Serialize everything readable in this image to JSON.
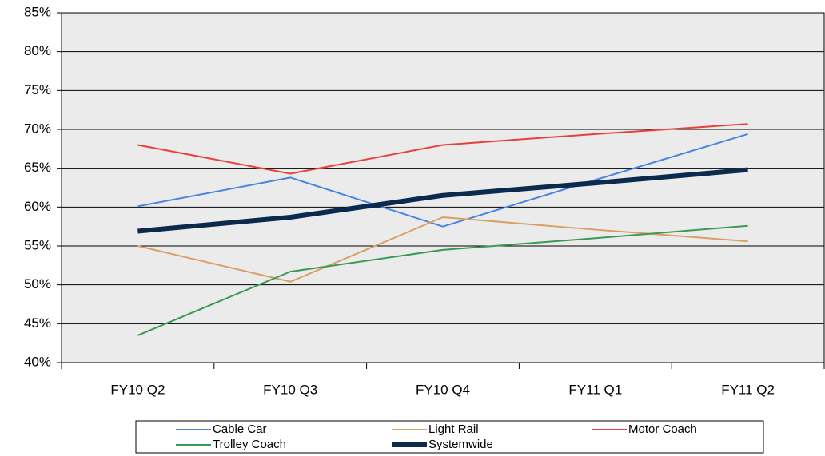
{
  "chart_data": {
    "type": "line",
    "categories": [
      "FY10 Q2",
      "FY10 Q3",
      "FY10 Q4",
      "FY11 Q1",
      "FY11 Q2"
    ],
    "series": [
      {
        "name": "Cable Car",
        "color": "#4a86e0",
        "width": 2,
        "values": [
          60.1,
          63.8,
          57.5,
          63.5,
          69.4
        ]
      },
      {
        "name": "Light Rail",
        "color": "#d9a066",
        "width": 2,
        "values": [
          55,
          50.4,
          58.7,
          57.1,
          55.6
        ]
      },
      {
        "name": "Motor Coach",
        "color": "#e8413c",
        "width": 2,
        "values": [
          68,
          64.3,
          68,
          69.4,
          70.7
        ]
      },
      {
        "name": "Trolley Coach",
        "color": "#3a9a55",
        "width": 2,
        "values": [
          43.5,
          51.7,
          54.5,
          56,
          57.6
        ]
      },
      {
        "name": "Systemwide",
        "color": "#0b2a4e",
        "width": 6,
        "values": [
          56.9,
          58.7,
          61.5,
          63.1,
          64.8
        ]
      }
    ],
    "ylim": [
      40,
      85
    ],
    "yticks": [
      {
        "value": 40,
        "label": "40%"
      },
      {
        "value": 45,
        "label": "45%"
      },
      {
        "value": 50,
        "label": "50%"
      },
      {
        "value": 55,
        "label": "55%"
      },
      {
        "value": 60,
        "label": "60%"
      },
      {
        "value": 65,
        "label": "65%"
      },
      {
        "value": 70,
        "label": "70%"
      },
      {
        "value": 75,
        "label": "75%"
      },
      {
        "value": 80,
        "label": "80%"
      },
      {
        "value": 85,
        "label": "85%"
      }
    ],
    "grid": true,
    "legend": "bottom"
  }
}
